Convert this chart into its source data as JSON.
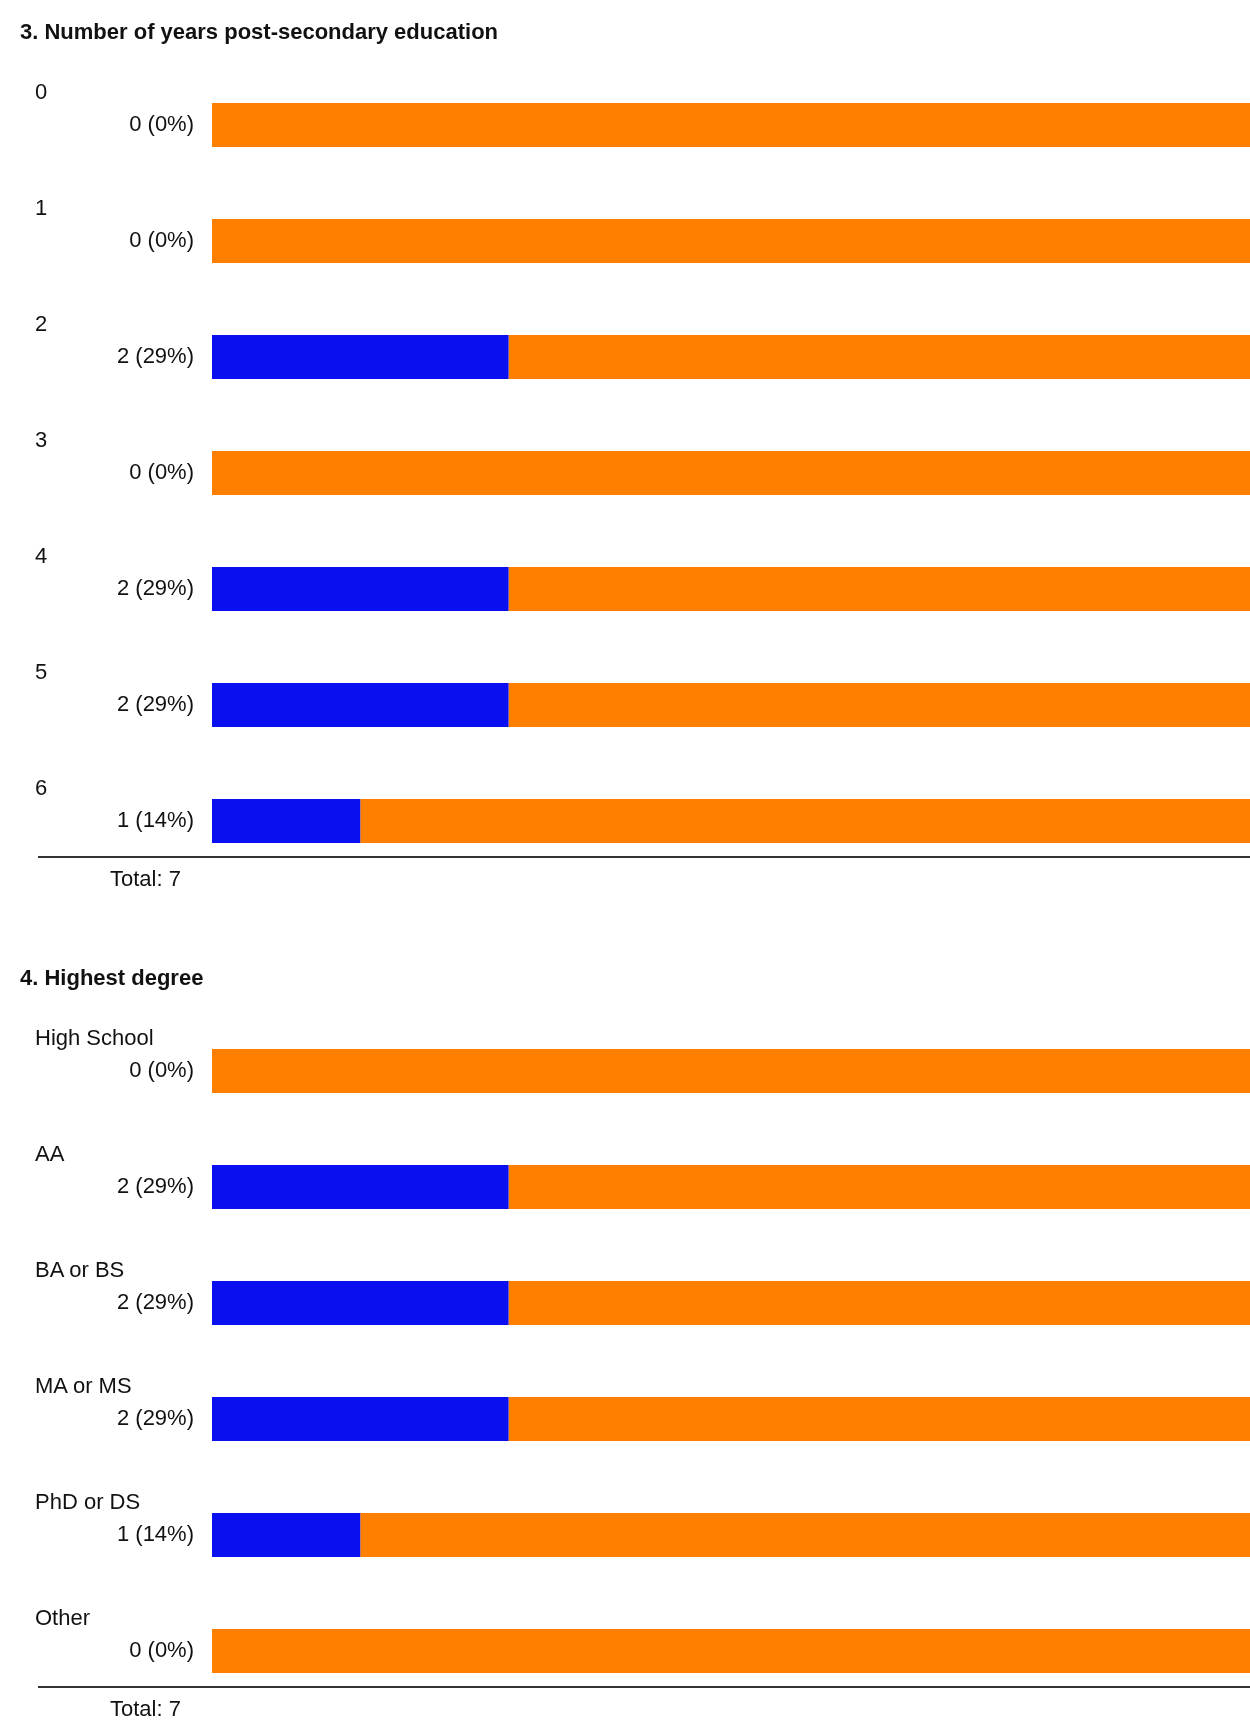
{
  "chart_data": [
    {
      "type": "bar",
      "title": "3. Number of years post-secondary education",
      "orientation": "horizontal",
      "stacked": true,
      "categories": [
        "0",
        "1",
        "2",
        "3",
        "4",
        "5",
        "6"
      ],
      "xlim": [
        0,
        7
      ],
      "tick_labels": "y",
      "series": [
        {
          "color": "#0a0ff0",
          "values": [
            0,
            0,
            2,
            0,
            2,
            2,
            1
          ],
          "value_labels": [
            "0 (0%)",
            "0 (0%)",
            "2 (29%)",
            "0 (0%)",
            "2 (29%)",
            "2 (29%)",
            "1 (14%)"
          ]
        },
        {
          "color": "#ff7f00",
          "values": [
            7,
            7,
            5,
            7,
            5,
            5,
            6
          ]
        }
      ],
      "annotations": [
        "Total: 7"
      ]
    },
    {
      "type": "bar",
      "title": "4. Highest degree",
      "orientation": "horizontal",
      "stacked": true,
      "categories": [
        "High School",
        "AA",
        "BA or BS",
        "MA or MS",
        "PhD or DS",
        "Other"
      ],
      "xlim": [
        0,
        7
      ],
      "tick_labels": "y",
      "series": [
        {
          "color": "#0a0ff0",
          "values": [
            0,
            2,
            2,
            2,
            1,
            0
          ],
          "value_labels": [
            "0 (0%)",
            "2 (29%)",
            "2 (29%)",
            "2 (29%)",
            "1 (14%)",
            "0 (0%)"
          ]
        },
        {
          "color": "#ff7f00",
          "values": [
            7,
            5,
            5,
            5,
            6,
            7
          ]
        }
      ],
      "annotations": [
        "Total: 7"
      ]
    }
  ]
}
